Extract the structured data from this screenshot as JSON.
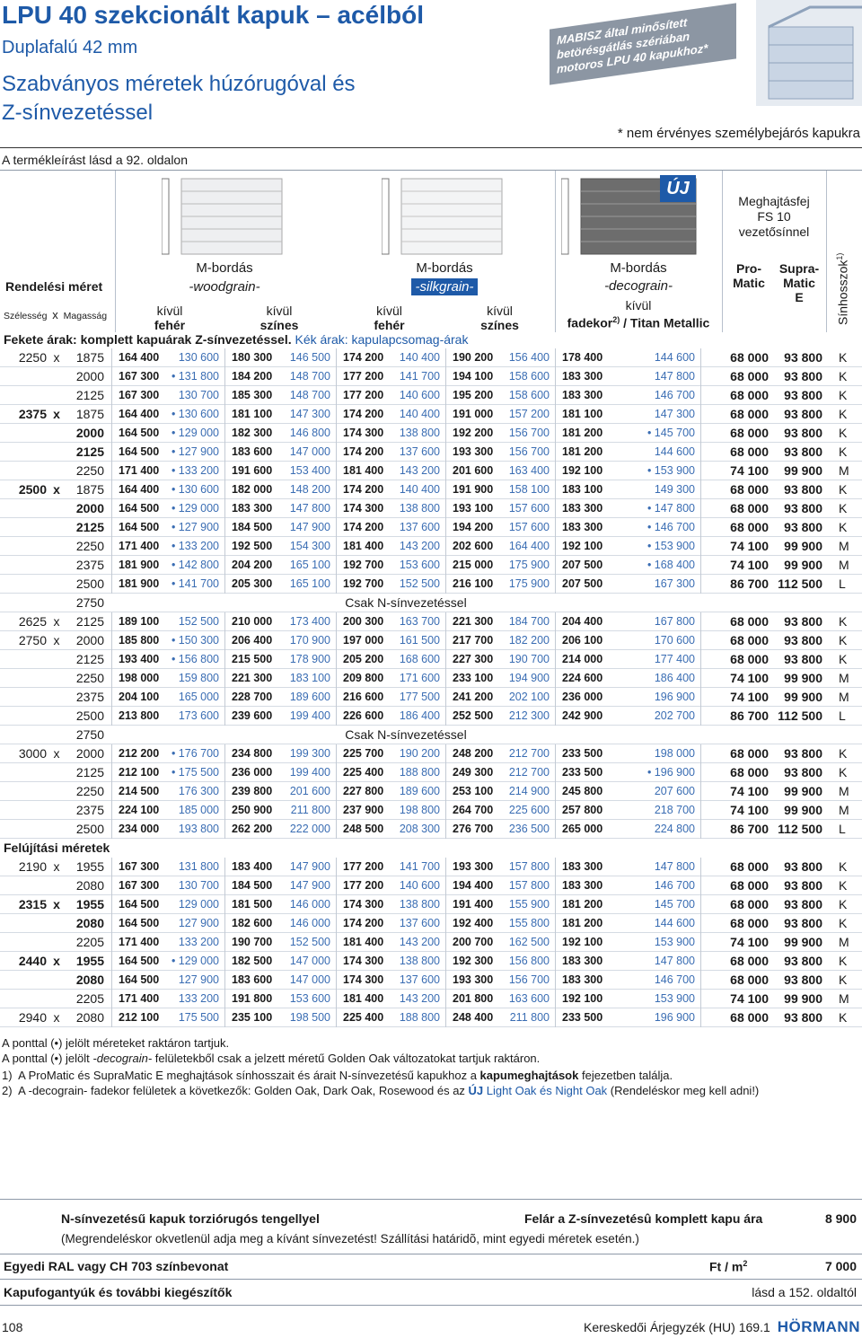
{
  "header": {
    "title": "LPU 40 szekcionált kapuk – acélból",
    "subtitle": "Duplafalú 42 mm",
    "heading_lines": [
      "Szabványos méretek húzórugóval és",
      "Z-sínvezetéssel"
    ],
    "reference": "A termékleírást lásd a 92. oldalon",
    "badge": "MABISZ által minősített betörésgátlás szériában motoros LPU 40 kapukhoz*",
    "badge_note": "* nem érvényes személybejárós kapukra"
  },
  "columns": {
    "order_size": "Rendelési méret",
    "width": "Szélesség",
    "by": "x",
    "height": "Magasság",
    "groups": [
      {
        "profile": "M-bordás",
        "surface": "-woodgrain-",
        "sides": [
          {
            "top": "kívül",
            "bottom": "fehér"
          },
          {
            "top": "kívül",
            "bottom": "színes"
          }
        ]
      },
      {
        "profile": "M-bordás",
        "surface": "-silkgrain-",
        "sides": [
          {
            "top": "kívül",
            "bottom": "fehér"
          },
          {
            "top": "kívül",
            "bottom": "színes"
          }
        ]
      }
    ],
    "decor": {
      "profile": "M-bordás",
      "surface": "-decograin-",
      "top": "kívül",
      "bottom": "fadekor",
      "note": "2)",
      "rest": "/ Titan Metallic"
    },
    "new": "ÚJ",
    "drive_head": [
      "Meghajtásfej",
      "FS 10",
      "vezetősínnel"
    ],
    "promatic": [
      "Pro-",
      "Matic"
    ],
    "supramatic": [
      "Supra-",
      "Matic",
      "E"
    ],
    "rail": "Sínhosszok",
    "rail_note": "1)",
    "legend_black": "Fekete árak: komplett kapuárak Z-sínvezetéssel.",
    "legend_blue": "Kék árak: kapulapcsomag-árak"
  },
  "table": {
    "sections": [
      {
        "rows": [
          {
            "width": "2250",
            "height": "1875",
            "prices": [
              "164 400",
              "130 600",
              "180 300",
              "146 500",
              "174 200",
              "140 400",
              "190 200",
              "156 400",
              "178 400",
              "144 600"
            ],
            "promatic": "68 000",
            "supramatic": "93 800",
            "rail": "K"
          },
          {
            "height": "2000",
            "prices": [
              "167 300",
              "• 131 800",
              "184 200",
              "148 700",
              "177 200",
              "141 700",
              "194 100",
              "158 600",
              "183 300",
              "147 800"
            ],
            "promatic": "68 000",
            "supramatic": "93 800",
            "rail": "K"
          },
          {
            "height": "2125",
            "prices": [
              "167 300",
              "130 700",
              "185 300",
              "148 700",
              "177 200",
              "140 600",
              "195 200",
              "158 600",
              "183 300",
              "146 700"
            ],
            "promatic": "68 000",
            "supramatic": "93 800",
            "rail": "K"
          },
          {
            "width": "2375",
            "bold_width": true,
            "height": "1875",
            "prices": [
              "164 400",
              "• 130 600",
              "181 100",
              "147 300",
              "174 200",
              "140 400",
              "191 000",
              "157 200",
              "181 100",
              "147 300"
            ],
            "promatic": "68 000",
            "supramatic": "93 800",
            "rail": "K"
          },
          {
            "height": "2000",
            "bold_height": true,
            "prices": [
              "164 500",
              "• 129 000",
              "182 300",
              "146 800",
              "174 300",
              "138 800",
              "192 200",
              "156 700",
              "181 200",
              "• 145 700"
            ],
            "promatic": "68 000",
            "supramatic": "93 800",
            "rail": "K"
          },
          {
            "height": "2125",
            "bold_height": true,
            "prices": [
              "164 500",
              "• 127 900",
              "183 600",
              "147 000",
              "174 200",
              "137 600",
              "193 300",
              "156 700",
              "181 200",
              "144 600"
            ],
            "promatic": "68 000",
            "supramatic": "93 800",
            "rail": "K"
          },
          {
            "height": "2250",
            "prices": [
              "171 400",
              "• 133 200",
              "191 600",
              "153 400",
              "181 400",
              "143 200",
              "201 600",
              "163 400",
              "192 100",
              "• 153 900"
            ],
            "promatic": "74 100",
            "supramatic": "99 900",
            "rail": "M"
          },
          {
            "width": "2500",
            "bold_width": true,
            "height": "1875",
            "prices": [
              "164 400",
              "• 130 600",
              "182 000",
              "148 200",
              "174 200",
              "140 400",
              "191 900",
              "158 100",
              "183 100",
              "149 300"
            ],
            "promatic": "68 000",
            "supramatic": "93 800",
            "rail": "K"
          },
          {
            "height": "2000",
            "bold_height": true,
            "prices": [
              "164 500",
              "• 129 000",
              "183 300",
              "147 800",
              "174 300",
              "138 800",
              "193 100",
              "157 600",
              "183 300",
              "• 147 800"
            ],
            "promatic": "68 000",
            "supramatic": "93 800",
            "rail": "K"
          },
          {
            "height": "2125",
            "bold_height": true,
            "prices": [
              "164 500",
              "• 127 900",
              "184 500",
              "147 900",
              "174 200",
              "137 600",
              "194 200",
              "157 600",
              "183 300",
              "• 146 700"
            ],
            "promatic": "68 000",
            "supramatic": "93 800",
            "rail": "K"
          },
          {
            "height": "2250",
            "prices": [
              "171 400",
              "• 133 200",
              "192 500",
              "154 300",
              "181 400",
              "143 200",
              "202 600",
              "164 400",
              "192 100",
              "• 153 900"
            ],
            "promatic": "74 100",
            "supramatic": "99 900",
            "rail": "M"
          },
          {
            "height": "2375",
            "prices": [
              "181 900",
              "• 142 800",
              "204 200",
              "165 100",
              "192 700",
              "153 600",
              "215 000",
              "175 900",
              "207 500",
              "• 168 400"
            ],
            "promatic": "74 100",
            "supramatic": "99 900",
            "rail": "M"
          },
          {
            "height": "2500",
            "prices": [
              "181 900",
              "• 141 700",
              "205 300",
              "165 100",
              "192 700",
              "152 500",
              "216 100",
              "175 900",
              "207 500",
              "167 300"
            ],
            "promatic": "86 700",
            "supramatic": "112 500",
            "rail": "L"
          },
          {
            "height": "2750",
            "note": "Csak N-sínvezetéssel"
          },
          {
            "width": "2625",
            "height": "2125",
            "prices": [
              "189 100",
              "152 500",
              "210 000",
              "173 400",
              "200 300",
              "163 700",
              "221 300",
              "184 700",
              "204 400",
              "167 800"
            ],
            "promatic": "68 000",
            "supramatic": "93 800",
            "rail": "K"
          },
          {
            "width": "2750",
            "height": "2000",
            "prices": [
              "185 800",
              "• 150 300",
              "206 400",
              "170 900",
              "197 000",
              "161 500",
              "217 700",
              "182 200",
              "206 100",
              "170 600"
            ],
            "promatic": "68 000",
            "supramatic": "93 800",
            "rail": "K"
          },
          {
            "height": "2125",
            "prices": [
              "193 400",
              "• 156 800",
              "215 500",
              "178 900",
              "205 200",
              "168 600",
              "227 300",
              "190 700",
              "214 000",
              "177 400"
            ],
            "promatic": "68 000",
            "supramatic": "93 800",
            "rail": "K"
          },
          {
            "height": "2250",
            "prices": [
              "198 000",
              "159 800",
              "221 300",
              "183 100",
              "209 800",
              "171 600",
              "233 100",
              "194 900",
              "224 600",
              "186 400"
            ],
            "promatic": "74 100",
            "supramatic": "99 900",
            "rail": "M"
          },
          {
            "height": "2375",
            "prices": [
              "204 100",
              "165 000",
              "228 700",
              "189 600",
              "216 600",
              "177 500",
              "241 200",
              "202 100",
              "236 000",
              "196 900"
            ],
            "promatic": "74 100",
            "supramatic": "99 900",
            "rail": "M"
          },
          {
            "height": "2500",
            "prices": [
              "213 800",
              "173 600",
              "239 600",
              "199 400",
              "226 600",
              "186 400",
              "252 500",
              "212 300",
              "242 900",
              "202 700"
            ],
            "promatic": "86 700",
            "supramatic": "112 500",
            "rail": "L"
          },
          {
            "height": "2750",
            "note": "Csak N-sínvezetéssel"
          },
          {
            "width": "3000",
            "height": "2000",
            "prices": [
              "212 200",
              "• 176 700",
              "234 800",
              "199 300",
              "225 700",
              "190 200",
              "248 200",
              "212 700",
              "233 500",
              "198 000"
            ],
            "promatic": "68 000",
            "supramatic": "93 800",
            "rail": "K"
          },
          {
            "height": "2125",
            "prices": [
              "212 100",
              "• 175 500",
              "236 000",
              "199 400",
              "225 400",
              "188 800",
              "249 300",
              "212 700",
              "233 500",
              "• 196 900"
            ],
            "promatic": "68 000",
            "supramatic": "93 800",
            "rail": "K"
          },
          {
            "height": "2250",
            "prices": [
              "214 500",
              "176 300",
              "239 800",
              "201 600",
              "227 800",
              "189 600",
              "253 100",
              "214 900",
              "245 800",
              "207 600"
            ],
            "promatic": "74 100",
            "supramatic": "99 900",
            "rail": "M"
          },
          {
            "height": "2375",
            "prices": [
              "224 100",
              "185 000",
              "250 900",
              "211 800",
              "237 900",
              "198 800",
              "264 700",
              "225 600",
              "257 800",
              "218 700"
            ],
            "promatic": "74 100",
            "supramatic": "99 900",
            "rail": "M"
          },
          {
            "height": "2500",
            "prices": [
              "234 000",
              "193 800",
              "262 200",
              "222 000",
              "248 500",
              "208 300",
              "276 700",
              "236 500",
              "265 000",
              "224 800"
            ],
            "promatic": "86 700",
            "supramatic": "112 500",
            "rail": "L"
          }
        ]
      },
      {
        "title": "Felújítási méretek",
        "rows": [
          {
            "width": "2190",
            "height": "1955",
            "prices": [
              "167 300",
              "131 800",
              "183 400",
              "147 900",
              "177 200",
              "141 700",
              "193 300",
              "157 800",
              "183 300",
              "147 800"
            ],
            "promatic": "68 000",
            "supramatic": "93 800",
            "rail": "K"
          },
          {
            "height": "2080",
            "prices": [
              "167 300",
              "130 700",
              "184 500",
              "147 900",
              "177 200",
              "140 600",
              "194 400",
              "157 800",
              "183 300",
              "146 700"
            ],
            "promatic": "68 000",
            "supramatic": "93 800",
            "rail": "K"
          },
          {
            "width": "2315",
            "bold_width": true,
            "height": "1955",
            "bold_height": true,
            "prices": [
              "164 500",
              "129 000",
              "181 500",
              "146 000",
              "174 300",
              "138 800",
              "191 400",
              "155 900",
              "181 200",
              "145 700"
            ],
            "promatic": "68 000",
            "supramatic": "93 800",
            "rail": "K"
          },
          {
            "height": "2080",
            "bold_height": true,
            "prices": [
              "164 500",
              "127 900",
              "182 600",
              "146 000",
              "174 200",
              "137 600",
              "192 400",
              "155 800",
              "181 200",
              "144 600"
            ],
            "promatic": "68 000",
            "supramatic": "93 800",
            "rail": "K"
          },
          {
            "height": "2205",
            "prices": [
              "171 400",
              "133 200",
              "190 700",
              "152 500",
              "181 400",
              "143 200",
              "200 700",
              "162 500",
              "192 100",
              "153 900"
            ],
            "promatic": "74 100",
            "supramatic": "99 900",
            "rail": "M"
          },
          {
            "width": "2440",
            "bold_width": true,
            "height": "1955",
            "bold_height": true,
            "prices": [
              "164 500",
              "• 129 000",
              "182 500",
              "147 000",
              "174 300",
              "138 800",
              "192 300",
              "156 800",
              "183 300",
              "147 800"
            ],
            "promatic": "68 000",
            "supramatic": "93 800",
            "rail": "K"
          },
          {
            "height": "2080",
            "bold_height": true,
            "prices": [
              "164 500",
              "127 900",
              "183 600",
              "147 000",
              "174 300",
              "137 600",
              "193 300",
              "156 700",
              "183 300",
              "146 700"
            ],
            "promatic": "68 000",
            "supramatic": "93 800",
            "rail": "K"
          },
          {
            "height": "2205",
            "prices": [
              "171 400",
              "133 200",
              "191 800",
              "153 600",
              "181 400",
              "143 200",
              "201 800",
              "163 600",
              "192 100",
              "153 900"
            ],
            "promatic": "74 100",
            "supramatic": "99 900",
            "rail": "M"
          },
          {
            "width": "2940",
            "height": "2080",
            "prices": [
              "212 100",
              "175 500",
              "235 100",
              "198 500",
              "225 400",
              "188 800",
              "248 400",
              "211 800",
              "233 500",
              "196 900"
            ],
            "promatic": "68 000",
            "supramatic": "93 800",
            "rail": "K"
          }
        ]
      }
    ]
  },
  "footnotes": [
    [
      {
        "text": "A ponttal (•) jelölt méreteket raktáron tartjuk."
      }
    ],
    [
      {
        "text": "A ponttal (•) jelölt "
      },
      {
        "text": "-decograin-",
        "italic": true
      },
      {
        "text": " felületekből csak a jelzett méretű Golden Oak változatokat tartjuk raktáron."
      }
    ],
    [
      {
        "text": "1)  A ProMatic és SupraMatic E meghajtások sínhosszait és árait N-sínvezetésű kapukhoz a "
      },
      {
        "text": "kapumeghajtások",
        "bold": true
      },
      {
        "text": " fejezetben találja."
      }
    ],
    [
      {
        "text": "2)  A -decograin- fadekor felületek a következők: Golden Oak, Dark Oak, Rosewood és az "
      },
      {
        "text": "ÚJ",
        "bold": true,
        "blue": true
      },
      {
        "text": " Light Oak és Night Oak",
        "blue": true
      },
      {
        "text": " (Rendeléskor meg kell adni!)"
      }
    ]
  ],
  "extras": [
    {
      "label": "N-sínvezetésű kapuk torziórugós tengellyel",
      "desc": "Felár a Z-sínvezetésû komplett kapu ára",
      "price": "8 900",
      "note": "(Megrendeléskor okvetlenül adja meg a kívánt sínvezetést! Szállítási határidõ, mint egyedi méretek esetén.)"
    },
    {
      "label": "Egyedi RAL vagy CH 703 színbevonat",
      "unit": "Ft / m",
      "unit_sup": "2",
      "price": "7 000"
    },
    {
      "label": "Kapufogantyúk és további kiegészítők",
      "price": "lásd a 152. oldaltól"
    }
  ],
  "footer": {
    "page": "108",
    "catalog": "Kereskedői Árjegyzék (HU) 169.1",
    "brand": "HÖRMANN"
  }
}
